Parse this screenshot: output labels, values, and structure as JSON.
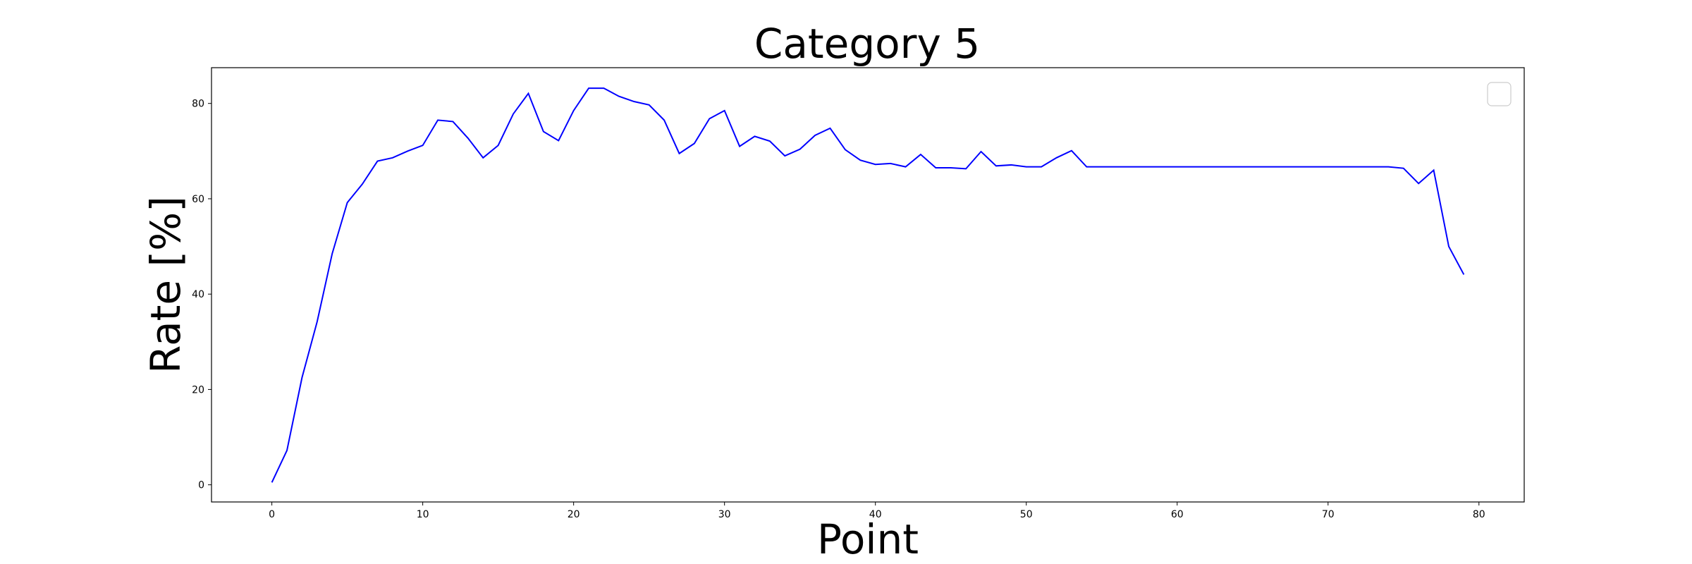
{
  "chart_data": {
    "type": "line",
    "title": "Category 5",
    "xlabel": "Point",
    "ylabel": "Rate [%]",
    "xlim": [
      -4,
      83
    ],
    "ylim": [
      -3.6,
      87.5
    ],
    "xticks": [
      0,
      10,
      20,
      30,
      40,
      50,
      60,
      70,
      80
    ],
    "yticks": [
      0,
      20,
      40,
      60,
      80
    ],
    "grid": false,
    "legend": "top-right",
    "line_color": "#0000ff",
    "series": [
      {
        "x": [
          0,
          1,
          2,
          3,
          4,
          5,
          6,
          7,
          8,
          9,
          10,
          11,
          12,
          13,
          14,
          15,
          16,
          17,
          18,
          19,
          20,
          21,
          22,
          23,
          24,
          25,
          26,
          27,
          28,
          29,
          30,
          31,
          32,
          33,
          34,
          35,
          36,
          37,
          38,
          39,
          40,
          41,
          42,
          43,
          44,
          45,
          46,
          47,
          48,
          49,
          50,
          51,
          52,
          53,
          54,
          55,
          56,
          57,
          58,
          59,
          60,
          61,
          62,
          63,
          64,
          65,
          66,
          67,
          68,
          69,
          70,
          71,
          72,
          73,
          74,
          75,
          76,
          77,
          78,
          79
        ],
        "values": [
          0.5,
          7.2,
          22.5,
          34.2,
          48.5,
          59.2,
          63.1,
          67.9,
          68.6,
          70.0,
          71.2,
          76.5,
          76.2,
          72.7,
          68.6,
          71.2,
          77.8,
          82.1,
          74.1,
          72.2,
          78.5,
          83.2,
          83.2,
          81.5,
          80.4,
          79.7,
          76.5,
          69.5,
          71.6,
          76.8,
          78.5,
          71.0,
          73.1,
          72.1,
          69.0,
          70.4,
          73.3,
          74.8,
          70.3,
          68.1,
          67.2,
          67.4,
          66.7,
          69.3,
          66.5,
          66.5,
          66.3,
          69.9,
          66.9,
          67.1,
          66.7,
          66.7,
          68.6,
          70.1,
          66.7,
          66.7,
          66.7,
          66.7,
          66.7,
          66.7,
          66.7,
          66.7,
          66.7,
          66.7,
          66.7,
          66.7,
          66.7,
          66.7,
          66.7,
          66.7,
          66.7,
          66.7,
          66.7,
          66.7,
          66.7,
          66.4,
          63.2,
          66.0,
          50.0,
          44.1
        ]
      }
    ]
  }
}
